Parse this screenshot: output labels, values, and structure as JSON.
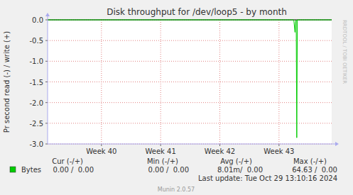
{
  "chart_data": {
    "type": "line",
    "title": "Disk throughput for /dev/loop5 - by month",
    "y_label": "Pr second read (-) / write (+)",
    "watermark": "RRDTOOL / TOBI OETIKER",
    "xlim": [
      39.09,
      43.89
    ],
    "xticks": [
      {
        "value": 40,
        "label": "Week 40"
      },
      {
        "value": 41,
        "label": "Week 41"
      },
      {
        "value": 42,
        "label": "Week 42"
      },
      {
        "value": 43,
        "label": "Week 43"
      }
    ],
    "ylim": [
      -3,
      0
    ],
    "yticks": [
      {
        "value": 0,
        "label": "0.0"
      },
      -0.5,
      {
        "value": -1,
        "label": "-1.0"
      },
      -1.5,
      {
        "value": -2,
        "label": "-2.0"
      },
      -2.5,
      {
        "value": -3,
        "label": "-3.0"
      }
    ],
    "grid": true,
    "x": [
      39.09,
      43.25,
      43.27,
      43.28,
      43.29,
      43.3,
      43.31,
      43.89
    ],
    "series": [
      {
        "name": "Bytes",
        "color": "#00cc00",
        "values": [
          0,
          0,
          -0.3,
          -0.05,
          0,
          -2.85,
          0,
          0
        ]
      }
    ],
    "stats": {
      "headers": [
        "Cur (-/+)",
        "Min (-/+)",
        "Avg (-/+)",
        "Max (-/+)"
      ],
      "rows": [
        {
          "values": [
            "0.00 /  0.00",
            "0.00 /  0.00",
            "8.01m/  0.00",
            "64.63 /  0.00"
          ]
        }
      ]
    },
    "last_update": "Last update: Tue Oct 29 13:10:16 2024",
    "footer": "Munin 2.0.57"
  }
}
